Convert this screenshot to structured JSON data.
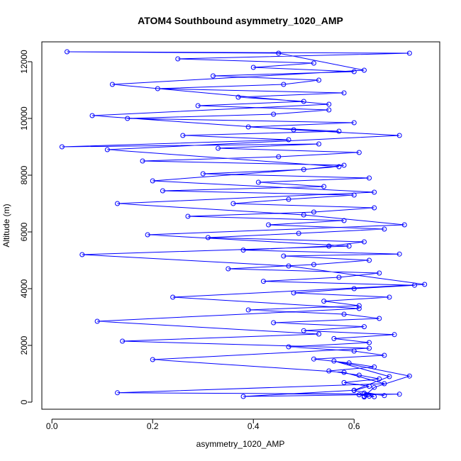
{
  "chart_data": {
    "type": "line",
    "title": "ATOM4 Southbound asymmetry_1020_AMP",
    "xlabel": "asymmetry_1020_AMP",
    "ylabel": "Altitude (m)",
    "xlim": [
      -0.02,
      0.77
    ],
    "ylim": [
      -250,
      12700
    ],
    "xticks": [
      0.0,
      0.2,
      0.4,
      0.6
    ],
    "xtick_labels": [
      "0.0",
      "0.2",
      "0.4",
      "0.6"
    ],
    "yticks": [
      0,
      2000,
      4000,
      6000,
      8000,
      10000,
      12000
    ],
    "ytick_labels": [
      "0",
      "2000",
      "4000",
      "6000",
      "8000",
      "10000",
      "12000"
    ],
    "grid": false,
    "legend": "none",
    "marker": "open-circle",
    "series": [
      {
        "color": "#0000ff",
        "points": [
          [
            0.62,
            180
          ],
          [
            0.63,
            210
          ],
          [
            0.61,
            260
          ],
          [
            0.64,
            190
          ],
          [
            0.62,
            320
          ],
          [
            0.66,
            230
          ],
          [
            0.6,
            410
          ],
          [
            0.63,
            560
          ],
          [
            0.58,
            690
          ],
          [
            0.65,
            820
          ],
          [
            0.61,
            950
          ],
          [
            0.55,
            1100
          ],
          [
            0.64,
            1240
          ],
          [
            0.59,
            1380
          ],
          [
            0.52,
            1520
          ],
          [
            0.66,
            1650
          ],
          [
            0.6,
            1800
          ],
          [
            0.47,
            1950
          ],
          [
            0.63,
            2100
          ],
          [
            0.56,
            2240
          ],
          [
            0.68,
            2380
          ],
          [
            0.5,
            2520
          ],
          [
            0.62,
            2660
          ],
          [
            0.44,
            2800
          ],
          [
            0.65,
            2950
          ],
          [
            0.58,
            3100
          ],
          [
            0.39,
            3250
          ],
          [
            0.61,
            3400
          ],
          [
            0.54,
            3560
          ],
          [
            0.67,
            3700
          ],
          [
            0.48,
            3850
          ],
          [
            0.6,
            4000
          ],
          [
            0.72,
            4120
          ],
          [
            0.42,
            4260
          ],
          [
            0.57,
            4400
          ],
          [
            0.65,
            4550
          ],
          [
            0.35,
            4700
          ],
          [
            0.52,
            4850
          ],
          [
            0.63,
            5000
          ],
          [
            0.46,
            5150
          ],
          [
            0.69,
            5220
          ],
          [
            0.38,
            5360
          ],
          [
            0.55,
            5500
          ],
          [
            0.62,
            5650
          ],
          [
            0.31,
            5800
          ],
          [
            0.49,
            5950
          ],
          [
            0.66,
            6100
          ],
          [
            0.43,
            6250
          ],
          [
            0.58,
            6400
          ],
          [
            0.27,
            6550
          ],
          [
            0.52,
            6700
          ],
          [
            0.64,
            6850
          ],
          [
            0.36,
            7000
          ],
          [
            0.47,
            7150
          ],
          [
            0.6,
            7300
          ],
          [
            0.22,
            7450
          ],
          [
            0.54,
            7600
          ],
          [
            0.41,
            7750
          ],
          [
            0.63,
            7900
          ],
          [
            0.3,
            8050
          ],
          [
            0.5,
            8200
          ],
          [
            0.58,
            8350
          ],
          [
            0.18,
            8500
          ],
          [
            0.45,
            8650
          ],
          [
            0.61,
            8800
          ],
          [
            0.33,
            8950
          ],
          [
            0.53,
            9100
          ],
          [
            0.02,
            9000
          ],
          [
            0.47,
            9250
          ],
          [
            0.26,
            9400
          ],
          [
            0.57,
            9550
          ],
          [
            0.39,
            9700
          ],
          [
            0.6,
            9850
          ],
          [
            0.15,
            10000
          ],
          [
            0.44,
            10150
          ],
          [
            0.55,
            10300
          ],
          [
            0.29,
            10450
          ],
          [
            0.5,
            10600
          ],
          [
            0.37,
            10750
          ],
          [
            0.58,
            10900
          ],
          [
            0.21,
            11050
          ],
          [
            0.46,
            11200
          ],
          [
            0.53,
            11350
          ],
          [
            0.32,
            11500
          ],
          [
            0.6,
            11650
          ],
          [
            0.4,
            11800
          ],
          [
            0.52,
            11950
          ],
          [
            0.25,
            12100
          ],
          [
            0.71,
            12300
          ],
          [
            0.03,
            12350
          ],
          [
            0.45,
            12300
          ],
          [
            0.62,
            11700
          ],
          [
            0.12,
            11200
          ],
          [
            0.55,
            10500
          ],
          [
            0.08,
            10100
          ],
          [
            0.48,
            9600
          ],
          [
            0.69,
            9400
          ],
          [
            0.11,
            8900
          ],
          [
            0.57,
            8300
          ],
          [
            0.2,
            7800
          ],
          [
            0.64,
            7400
          ],
          [
            0.13,
            7000
          ],
          [
            0.5,
            6600
          ],
          [
            0.7,
            6250
          ],
          [
            0.19,
            5900
          ],
          [
            0.59,
            5500
          ],
          [
            0.06,
            5200
          ],
          [
            0.47,
            4800
          ],
          [
            0.74,
            4150
          ],
          [
            0.24,
            3700
          ],
          [
            0.61,
            3300
          ],
          [
            0.09,
            2850
          ],
          [
            0.53,
            2400
          ],
          [
            0.14,
            2150
          ],
          [
            0.63,
            1900
          ],
          [
            0.2,
            1500
          ],
          [
            0.58,
            1050
          ],
          [
            0.66,
            650
          ],
          [
            0.13,
            330
          ],
          [
            0.69,
            280
          ],
          [
            0.38,
            200
          ],
          [
            0.6,
            420
          ],
          [
            0.67,
            900
          ],
          [
            0.56,
            1450
          ],
          [
            0.71,
            920
          ],
          [
            0.64,
            520
          ],
          [
            0.62,
            210
          ]
        ]
      }
    ]
  }
}
